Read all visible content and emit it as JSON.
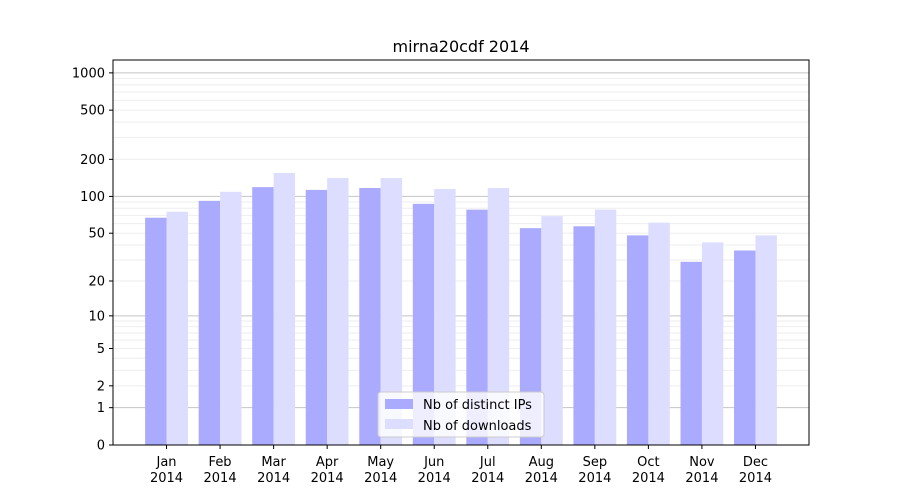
{
  "chart_data": {
    "type": "bar",
    "title": "mirna20cdf 2014",
    "xlabel": "",
    "ylabel": "",
    "yscale": "log10(y+1)",
    "ylim": [
      0,
      1270
    ],
    "yticks": [
      0,
      1,
      2,
      5,
      10,
      20,
      50,
      100,
      200,
      500,
      1000
    ],
    "ytick_labels": [
      "0",
      "1",
      "2",
      "5",
      "10",
      "20",
      "50",
      "100",
      "200",
      "500",
      "1000"
    ],
    "categories": [
      [
        "Jan",
        "2014"
      ],
      [
        "Feb",
        "2014"
      ],
      [
        "Mar",
        "2014"
      ],
      [
        "Apr",
        "2014"
      ],
      [
        "May",
        "2014"
      ],
      [
        "Jun",
        "2014"
      ],
      [
        "Jul",
        "2014"
      ],
      [
        "Aug",
        "2014"
      ],
      [
        "Sep",
        "2014"
      ],
      [
        "Oct",
        "2014"
      ],
      [
        "Nov",
        "2014"
      ],
      [
        "Dec",
        "2014"
      ]
    ],
    "series": [
      {
        "name": "Nb of distinct IPs",
        "color": "#aaaaff",
        "values": [
          67,
          92,
          119,
          113,
          117,
          87,
          78,
          55,
          57,
          48,
          29,
          36
        ]
      },
      {
        "name": "Nb of downloads",
        "color": "#ddddff",
        "values": [
          75,
          109,
          155,
          141,
          141,
          115,
          117,
          69,
          78,
          61,
          42,
          48
        ]
      }
    ],
    "grid": true,
    "legend_position": "lower-center"
  }
}
